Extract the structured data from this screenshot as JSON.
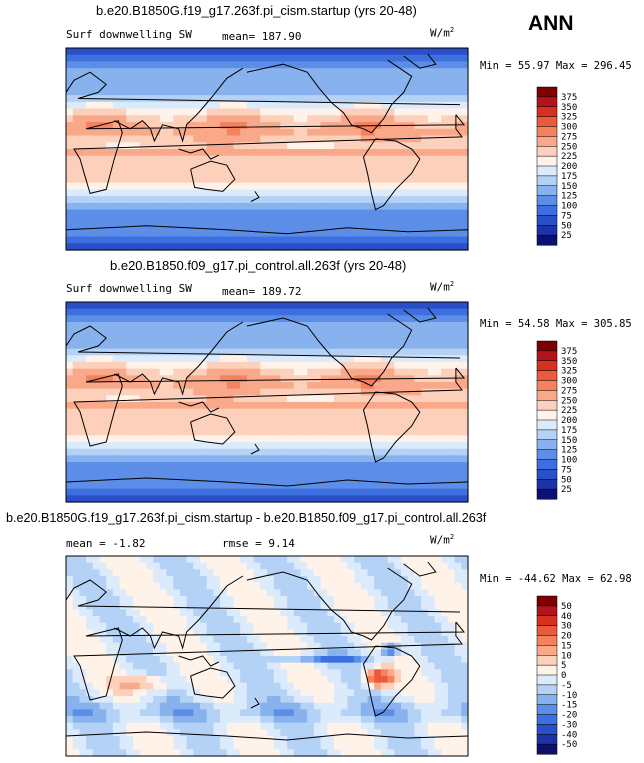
{
  "season_label": "ANN",
  "unit_base": "W/m",
  "unit_exp": "2",
  "chart_data": [
    {
      "type": "heatmap",
      "title": "b.e20.B1850G.f19_g17.263f.pi_cism.startup (yrs 20-48)",
      "variable": "Surf downwelling SW",
      "mean_text": "mean= 187.90",
      "min_max_text": "Min =  55.97 Max = 296.45",
      "levels": [
        "375",
        "350",
        "325",
        "300",
        "275",
        "250",
        "225",
        "200",
        "175",
        "150",
        "125",
        "100",
        "75",
        "50",
        "25"
      ],
      "colors": [
        "#7f0000",
        "#b2141e",
        "#d7301f",
        "#ea5a3c",
        "#f4825e",
        "#f9a98a",
        "#fdd0bb",
        "#fff2e8",
        "#dcebfb",
        "#b4d2f5",
        "#88b2ee",
        "#5c8ee8",
        "#3d6fe0",
        "#2a4fc8",
        "#1e32a8",
        "#0c1070"
      ],
      "field": "sw",
      "min": 55.97,
      "max": 296.45,
      "mean": 187.9
    },
    {
      "type": "heatmap",
      "title": "b.e20.B1850.f09_g17.pi_control.all.263f (yrs 20-48)",
      "variable": "Surf downwelling SW",
      "mean_text": "mean= 189.72",
      "min_max_text": "Min =  54.58 Max = 305.85",
      "levels": [
        "375",
        "350",
        "325",
        "300",
        "275",
        "250",
        "225",
        "200",
        "175",
        "150",
        "125",
        "100",
        "75",
        "50",
        "25"
      ],
      "colors": [
        "#7f0000",
        "#b2141e",
        "#d7301f",
        "#ea5a3c",
        "#f4825e",
        "#f9a98a",
        "#fdd0bb",
        "#fff2e8",
        "#dcebfb",
        "#b4d2f5",
        "#88b2ee",
        "#5c8ee8",
        "#3d6fe0",
        "#2a4fc8",
        "#1e32a8",
        "#0c1070"
      ],
      "field": "sw",
      "min": 54.58,
      "max": 305.85,
      "mean": 189.72
    },
    {
      "type": "heatmap",
      "title": "b.e20.B1850G.f19_g17.263f.pi_cism.startup - b.e20.B1850.f09_g17.pi_control.all.263f",
      "variable": "",
      "mean_text": "mean =   -1.82",
      "rmse_text": "rmse =    9.14",
      "min_max_text": "Min = -44.62 Max =  62.98",
      "levels": [
        "50",
        "40",
        "30",
        "20",
        "15",
        "10",
        "5",
        "0",
        "-5",
        "-10",
        "-15",
        "-20",
        "-30",
        "-40",
        "-50"
      ],
      "colors": [
        "#7f0000",
        "#b2141e",
        "#d7301f",
        "#ea5a3c",
        "#f4825e",
        "#f9a98a",
        "#fdd0bb",
        "#fff2e8",
        "#dcebfb",
        "#b4d2f5",
        "#88b2ee",
        "#5c8ee8",
        "#3d6fe0",
        "#2a4fc8",
        "#1e32a8",
        "#0c1070"
      ],
      "field": "diff",
      "min": -44.62,
      "max": 62.98,
      "mean": -1.82,
      "rmse": 9.14
    }
  ]
}
